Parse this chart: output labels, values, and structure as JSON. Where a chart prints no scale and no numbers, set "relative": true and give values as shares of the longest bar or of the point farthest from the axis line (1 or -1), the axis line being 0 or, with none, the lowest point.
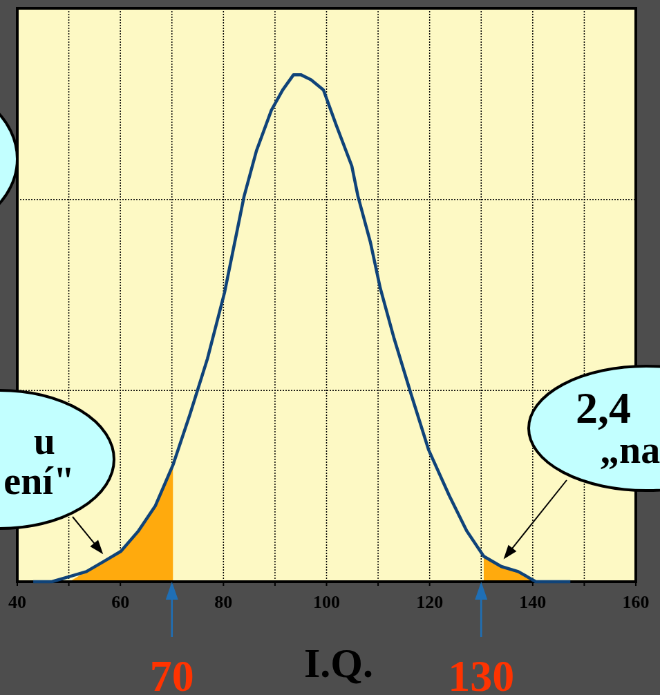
{
  "chart_data": {
    "type": "line",
    "xlabel": "I.Q.",
    "relative": true,
    "xlim": [
      40,
      160
    ],
    "xticks": [
      40,
      {
        "value": 50,
        "label": null
      },
      60,
      {
        "value": 70,
        "label": null
      },
      80,
      {
        "value": 90,
        "label": null
      },
      100,
      {
        "value": 110,
        "label": null
      },
      120,
      {
        "value": 130,
        "label": null
      },
      140,
      {
        "value": 150,
        "label": null
      },
      160
    ],
    "grid": true,
    "marker": "none",
    "line_style": "solid",
    "series": [
      {
        "type": "area",
        "color": "#ffaa0d",
        "x": [
          50.1,
          53.4,
          56.8,
          60.1,
          63.5,
          66.8,
          70.2
        ],
        "values": [
          0,
          0.02,
          0.04,
          0.06,
          0.1,
          0.15,
          0.23
        ]
      },
      {
        "type": "area",
        "color": "#ffaa0d",
        "x": [
          130.5,
          133.9,
          137.2,
          140.6
        ],
        "values": [
          0.05,
          0.03,
          0.02,
          0
        ]
      },
      {
        "color": "#0f4379",
        "x": [
          43.1,
          46.7,
          50.1,
          53.4,
          56.8,
          60.1,
          63.5,
          66.8,
          70.2,
          73.5,
          76.9,
          80.2,
          84.0,
          86.4,
          89.3,
          91.5,
          93.6,
          95.0,
          97.0,
          99.4,
          101.9,
          104.9,
          106.1,
          108.5,
          110.4,
          113.1,
          116.4,
          119.8,
          123.8,
          127.2,
          130.5,
          133.9,
          137.2,
          140.6,
          142.6,
          147.3
        ],
        "values": [
          0,
          0,
          0.01,
          0.02,
          0.04,
          0.06,
          0.1,
          0.15,
          0.23,
          0.33,
          0.44,
          0.57,
          0.76,
          0.85,
          0.93,
          0.97,
          1.0,
          1.0,
          0.99,
          0.97,
          0.9,
          0.82,
          0.76,
          0.67,
          0.58,
          0.48,
          0.37,
          0.26,
          0.17,
          0.1,
          0.05,
          0.03,
          0.02,
          0,
          0,
          0
        ]
      }
    ],
    "annotations": [
      {
        "text": "u\není\"",
        "x": 57,
        "y": 0.05
      },
      {
        "text": "2,4\n„na",
        "x": 134,
        "y": 0.04
      },
      {
        "text": "70",
        "x": 70,
        "y": 0
      },
      {
        "text": "130",
        "x": 130,
        "y": 0
      }
    ]
  }
}
